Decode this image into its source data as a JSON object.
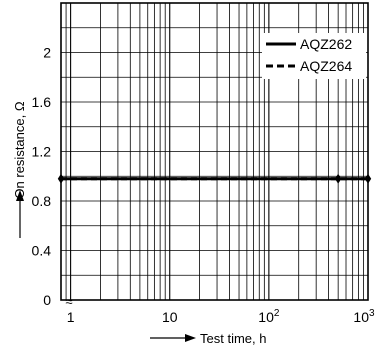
{
  "chart_data": {
    "type": "line",
    "xlabel": "Test time, h",
    "ylabel": "On resistance, Ω",
    "xscale": "log",
    "xlim": [
      0.8,
      1000
    ],
    "ylim": [
      0,
      2.4
    ],
    "x_ticks": [
      {
        "value": 1,
        "base": "1",
        "exp": ""
      },
      {
        "value": 10,
        "base": "10",
        "exp": ""
      },
      {
        "value": 100,
        "base": "10",
        "exp": "2"
      },
      {
        "value": 1000,
        "base": "10",
        "exp": "3"
      }
    ],
    "y_ticks": [
      {
        "value": 0,
        "label": "0"
      },
      {
        "value": 0.4,
        "label": "0.4"
      },
      {
        "value": 0.8,
        "label": "0.8"
      },
      {
        "value": 1.2,
        "label": "1.2"
      },
      {
        "value": 1.6,
        "label": "1.6"
      },
      {
        "value": 2.0,
        "label": "2"
      }
    ],
    "grid": true,
    "legend_position": "top-right",
    "series": [
      {
        "name": "AQZ262",
        "style": "solid",
        "x": [
          0.8,
          500,
          1000
        ],
        "y": [
          0.98,
          0.98,
          0.98
        ]
      },
      {
        "name": "AQZ264",
        "style": "dashed",
        "x": [
          0.8,
          500,
          1000
        ],
        "y": [
          0.98,
          0.98,
          0.98
        ]
      }
    ],
    "markers": [
      {
        "x": 0.8,
        "y": 0.98
      },
      {
        "x": 500,
        "y": 0.98
      },
      {
        "x": 1000,
        "y": 0.98
      }
    ],
    "axis_break_marker": "≈",
    "colors": {
      "line": "#000000",
      "grid": "#000000",
      "background": "#ffffff"
    }
  }
}
